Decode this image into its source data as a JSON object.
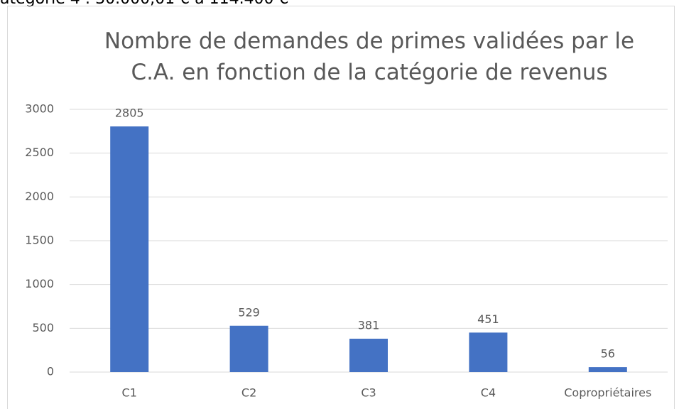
{
  "header": {
    "text": "atégorie 4 : 30.000,01 € à 114.400 €"
  },
  "chart_data": {
    "type": "bar",
    "title": "Nombre de demandes de primes validées par le C.A. en fonction de la catégorie de revenus",
    "categories": [
      "C1",
      "C2",
      "C3",
      "C4",
      "Copropriétaires"
    ],
    "values": [
      2805,
      529,
      381,
      451,
      56
    ],
    "color": "#4472c4",
    "ylim": [
      0,
      3000
    ],
    "yticks": [
      0,
      500,
      1000,
      1500,
      2000,
      2500,
      3000
    ],
    "grid": true
  }
}
